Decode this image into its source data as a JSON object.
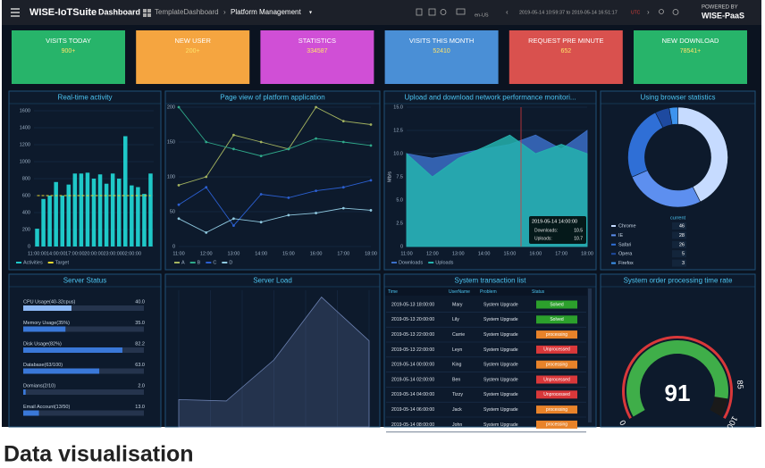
{
  "header": {
    "brand": "WISE-IoTSuite",
    "section": "Dashboard",
    "breadcrumb": [
      "TemplateDashboard",
      "Platform Management"
    ],
    "locale": "en-US",
    "time_range": "2019-05-14 10:59:37 to 2019-05-14 16:51:17",
    "timezone": "UTC",
    "powered_by": "POWERED BY",
    "platform": "WISE-PaaS"
  },
  "kpis": [
    {
      "label": "VISITS TODAY",
      "value": "900+",
      "color": "#27b46a"
    },
    {
      "label": "NEW USER",
      "value": "200+",
      "color": "#f5a540"
    },
    {
      "label": "STATISTICS",
      "value": 334587,
      "color": "#d04fd6"
    },
    {
      "label": "VISITS THIS MONTH",
      "value": 52410,
      "color": "#4a8fd6"
    },
    {
      "label": "REQUEST PRE MINUTE",
      "value": 652,
      "color": "#d9514e"
    },
    {
      "label": "NEW DOWNLOAD",
      "value": "78541+",
      "color": "#27b46a"
    }
  ],
  "chart_data": [
    {
      "type": "bar",
      "title": "Real-time activity",
      "categories": [
        "11:00:00",
        null,
        null,
        "14:00:00",
        null,
        null,
        "17:00:00",
        null,
        null,
        "20:00:00",
        null,
        null,
        "23:00:00",
        null,
        null,
        "02:00:00",
        null,
        null,
        null
      ],
      "series": [
        {
          "name": "Activities",
          "color": "#1fc8c8",
          "values": [
            210,
            560,
            600,
            760,
            600,
            730,
            860,
            860,
            870,
            800,
            850,
            740,
            860,
            800,
            1300,
            720,
            700,
            620,
            860
          ]
        },
        {
          "name": "Target",
          "type": "line",
          "color": "#e6d830",
          "values": [
            600,
            600,
            600,
            600,
            600,
            600,
            600,
            600,
            600,
            600,
            600,
            600,
            600,
            600,
            600,
            600,
            600,
            600,
            600
          ]
        }
      ],
      "ylim": [
        0,
        1600
      ],
      "yticks": [
        0,
        200,
        400,
        600,
        800,
        1000,
        1200,
        1400,
        1600
      ],
      "grid": true
    },
    {
      "type": "line",
      "title": "Page view of platform application",
      "categories": [
        "11:00",
        "12:00",
        "13:00",
        "14:00",
        "15:00",
        "16:00",
        "17:00",
        "18:00"
      ],
      "series": [
        {
          "name": "A",
          "color": "#a3b35f",
          "values": [
            88,
            100,
            160,
            150,
            140,
            200,
            180,
            175
          ]
        },
        {
          "name": "B",
          "color": "#2fa98a",
          "values": [
            200,
            150,
            140,
            130,
            140,
            155,
            150,
            145
          ]
        },
        {
          "name": "C",
          "color": "#2b5fd0",
          "values": [
            60,
            85,
            30,
            75,
            70,
            80,
            85,
            95
          ]
        },
        {
          "name": "D",
          "color": "#8fc9e0",
          "values": [
            40,
            20,
            40,
            35,
            45,
            48,
            55,
            52
          ]
        }
      ],
      "ylim": [
        0,
        200
      ],
      "yticks": [
        0,
        50,
        100,
        150,
        200
      ],
      "grid": true
    },
    {
      "type": "area",
      "title": "Upload and download network performance monitori...",
      "y_label": "Mb/s",
      "categories": [
        "11:00",
        "12:00",
        "13:00",
        "14:00",
        "15:00",
        "16:00",
        "17:00",
        "18:00"
      ],
      "series": [
        {
          "name": "Downloads",
          "color": "#3b6fc7",
          "values": [
            10,
            9.5,
            10,
            10.5,
            11,
            12,
            10.5,
            12.5
          ]
        },
        {
          "name": "Uploads",
          "color": "#25b3ae",
          "values": [
            10,
            7.5,
            9.5,
            10.7,
            12,
            10,
            11,
            10
          ]
        }
      ],
      "ylim": [
        0,
        15
      ],
      "yticks": [
        0,
        2.5,
        {
          "value": 5,
          "label": "5.0"
        },
        7.5,
        {
          "value": 10,
          "label": "10.0"
        },
        12.5,
        {
          "value": 15,
          "label": "15.0"
        }
      ],
      "grid": true,
      "tooltip": {
        "title": "2019-05-14 14:00:00",
        "items": [
          {
            "label": "Downloads:",
            "value": 10.5
          },
          {
            "label": "Uploads:",
            "value": 10.7
          }
        ]
      }
    },
    {
      "type": "donut",
      "title": "Using browser statistics",
      "legend_title": "current",
      "categories": [
        "Chrome",
        "IE",
        "Safari",
        "Opera",
        "Firefox"
      ],
      "values": [
        46,
        28,
        26,
        5,
        3
      ],
      "colors": [
        "#c6dbff",
        "#5d8fef",
        "#2f6fd6",
        "#1e4aa0",
        "#3d94ee"
      ]
    },
    {
      "type": "area",
      "title": "Server Load",
      "values": [
        20,
        19,
        49,
        95,
        63
      ],
      "ylim": [
        0,
        100
      ],
      "color": "#6b80b0"
    },
    {
      "type": "gauge",
      "title": "System order processing time rate",
      "value": 91,
      "range": [
        0,
        100
      ],
      "ticks": [
        0,
        85,
        100
      ],
      "color": "#3fae49",
      "track_color": "#1a1a1a",
      "ring_color": "#d9383a"
    }
  ],
  "server_status": {
    "title": "Server Status",
    "xlim": [
      0,
      100
    ],
    "rows": [
      {
        "label": "CPU Usage(40-32cpus)",
        "value": 40,
        "value_label": "40.0"
      },
      {
        "label": "Memory Usage(35%)",
        "value": 35,
        "value_label": "35.0"
      },
      {
        "label": "Disk Usage(82%)",
        "value": 82.2
      },
      {
        "label": "Database(63/100)",
        "value": 63,
        "value_label": "63.0"
      },
      {
        "label": "Domians(2/10)",
        "value": 2,
        "value_label": "2.0"
      },
      {
        "label": "Email Account(13/50)",
        "value": 13,
        "value_label": "13.0"
      }
    ]
  },
  "transactions": {
    "title": "System transaction list",
    "columns": [
      "Time",
      "UserName",
      "Problem",
      "Status"
    ],
    "rows": [
      {
        "time": "2019-05-13 18:00:00",
        "user": "Mary",
        "problem": "System Upgrade",
        "status": "Solved",
        "status_color": "#2ca02c"
      },
      {
        "time": "2019-05-13 20:00:00",
        "user": "Lily",
        "problem": "System Upgrade",
        "status": "Solved",
        "status_color": "#2ca02c"
      },
      {
        "time": "2019-05-13 22:00:00",
        "user": "Carrie",
        "problem": "System Upgrade",
        "status": "processing",
        "status_color": "#e8832a"
      },
      {
        "time": "2019-05-13 22:00:00",
        "user": "Leyn",
        "problem": "System Upgrade",
        "status": "Unprocessed",
        "status_color": "#d9383a"
      },
      {
        "time": "2019-05-14 00:00:00",
        "user": "King",
        "problem": "System Upgrade",
        "status": "processing",
        "status_color": "#e8832a"
      },
      {
        "time": "2019-05-14 02:00:00",
        "user": "Ben",
        "problem": "System Upgrade",
        "status": "Unprocessed",
        "status_color": "#d9383a"
      },
      {
        "time": "2019-05-14 04:00:00",
        "user": "Tizzy",
        "problem": "System Upgrade",
        "status": "Unprocessed",
        "status_color": "#d9383a"
      },
      {
        "time": "2019-05-14 06:00:00",
        "user": "Jack",
        "problem": "System Upgrade",
        "status": "processing",
        "status_color": "#e8832a"
      },
      {
        "time": "2019-05-14 08:00:00",
        "user": "John",
        "problem": "System Upgrade",
        "status": "processing",
        "status_color": "#e8832a"
      }
    ]
  },
  "caption": "Data visualisation"
}
